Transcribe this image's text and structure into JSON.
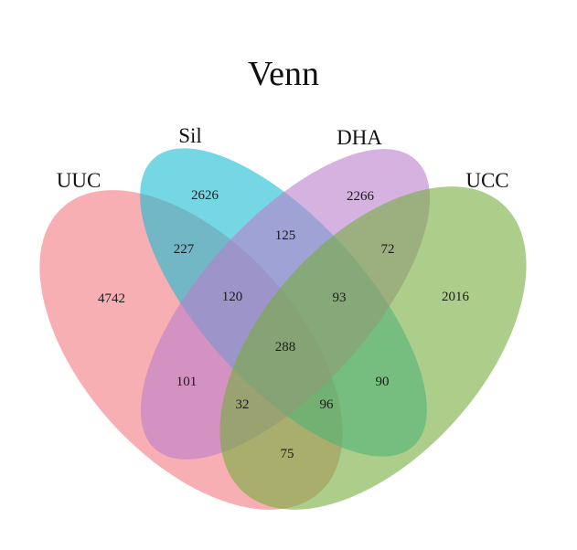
{
  "title": "Venn",
  "sets": [
    {
      "key": "UUC",
      "name": "UUC",
      "color": "#f27a80"
    },
    {
      "key": "Sil",
      "name": "Sil",
      "color": "#19bcd0"
    },
    {
      "key": "DHA",
      "name": "DHA",
      "color": "#bb7ecc"
    },
    {
      "key": "UCC",
      "name": "UCC",
      "color": "#74ad3c"
    }
  ],
  "regions": {
    "UUC": "4742",
    "Sil": "2626",
    "DHA": "2266",
    "UCC": "2016",
    "UUC&Sil": "227",
    "Sil&DHA": "125",
    "DHA&UCC": "72",
    "UUC&Sil&DHA": "120",
    "Sil&DHA&UCC": "93",
    "UUC&Sil&DHA&UCC": "288",
    "UUC&DHA": "101",
    "UUC&DHA&UCC": "32",
    "UUC&Sil&UCC": "96",
    "Sil&UCC": "90",
    "UUC&UCC": "75"
  }
}
